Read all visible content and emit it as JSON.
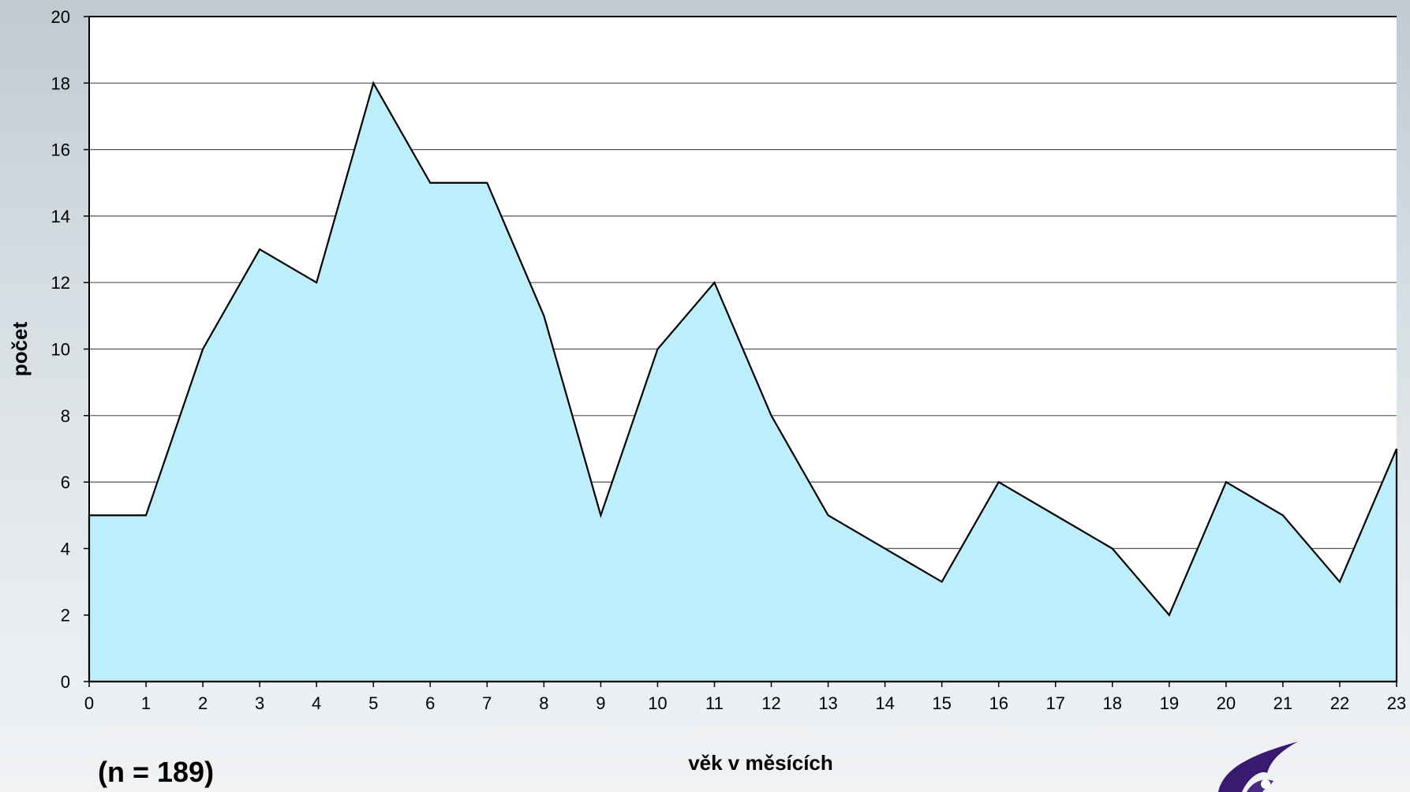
{
  "note": "(n = 189)",
  "logo_icon": "purple-flame-logo",
  "chart_data": {
    "type": "area",
    "title": "",
    "xlabel": "věk v měsících",
    "ylabel": "počet",
    "x": [
      0,
      1,
      2,
      3,
      4,
      5,
      6,
      7,
      8,
      9,
      10,
      11,
      12,
      13,
      14,
      15,
      16,
      17,
      18,
      19,
      20,
      21,
      22,
      23
    ],
    "values": [
      5,
      5,
      10,
      13,
      12,
      18,
      15,
      15,
      11,
      5,
      10,
      12,
      8,
      5,
      4,
      3,
      6,
      5,
      4,
      2,
      6,
      5,
      3,
      7
    ],
    "xlim": [
      0,
      23
    ],
    "ylim": [
      0,
      20
    ],
    "yticks": [
      0,
      2,
      4,
      6,
      8,
      10,
      12,
      14,
      16,
      18,
      20
    ],
    "grid": true,
    "fill_color": "#bdeefc",
    "line_color": "#000000",
    "plot_background": "#ffffff",
    "gridline_color": "#555555"
  }
}
